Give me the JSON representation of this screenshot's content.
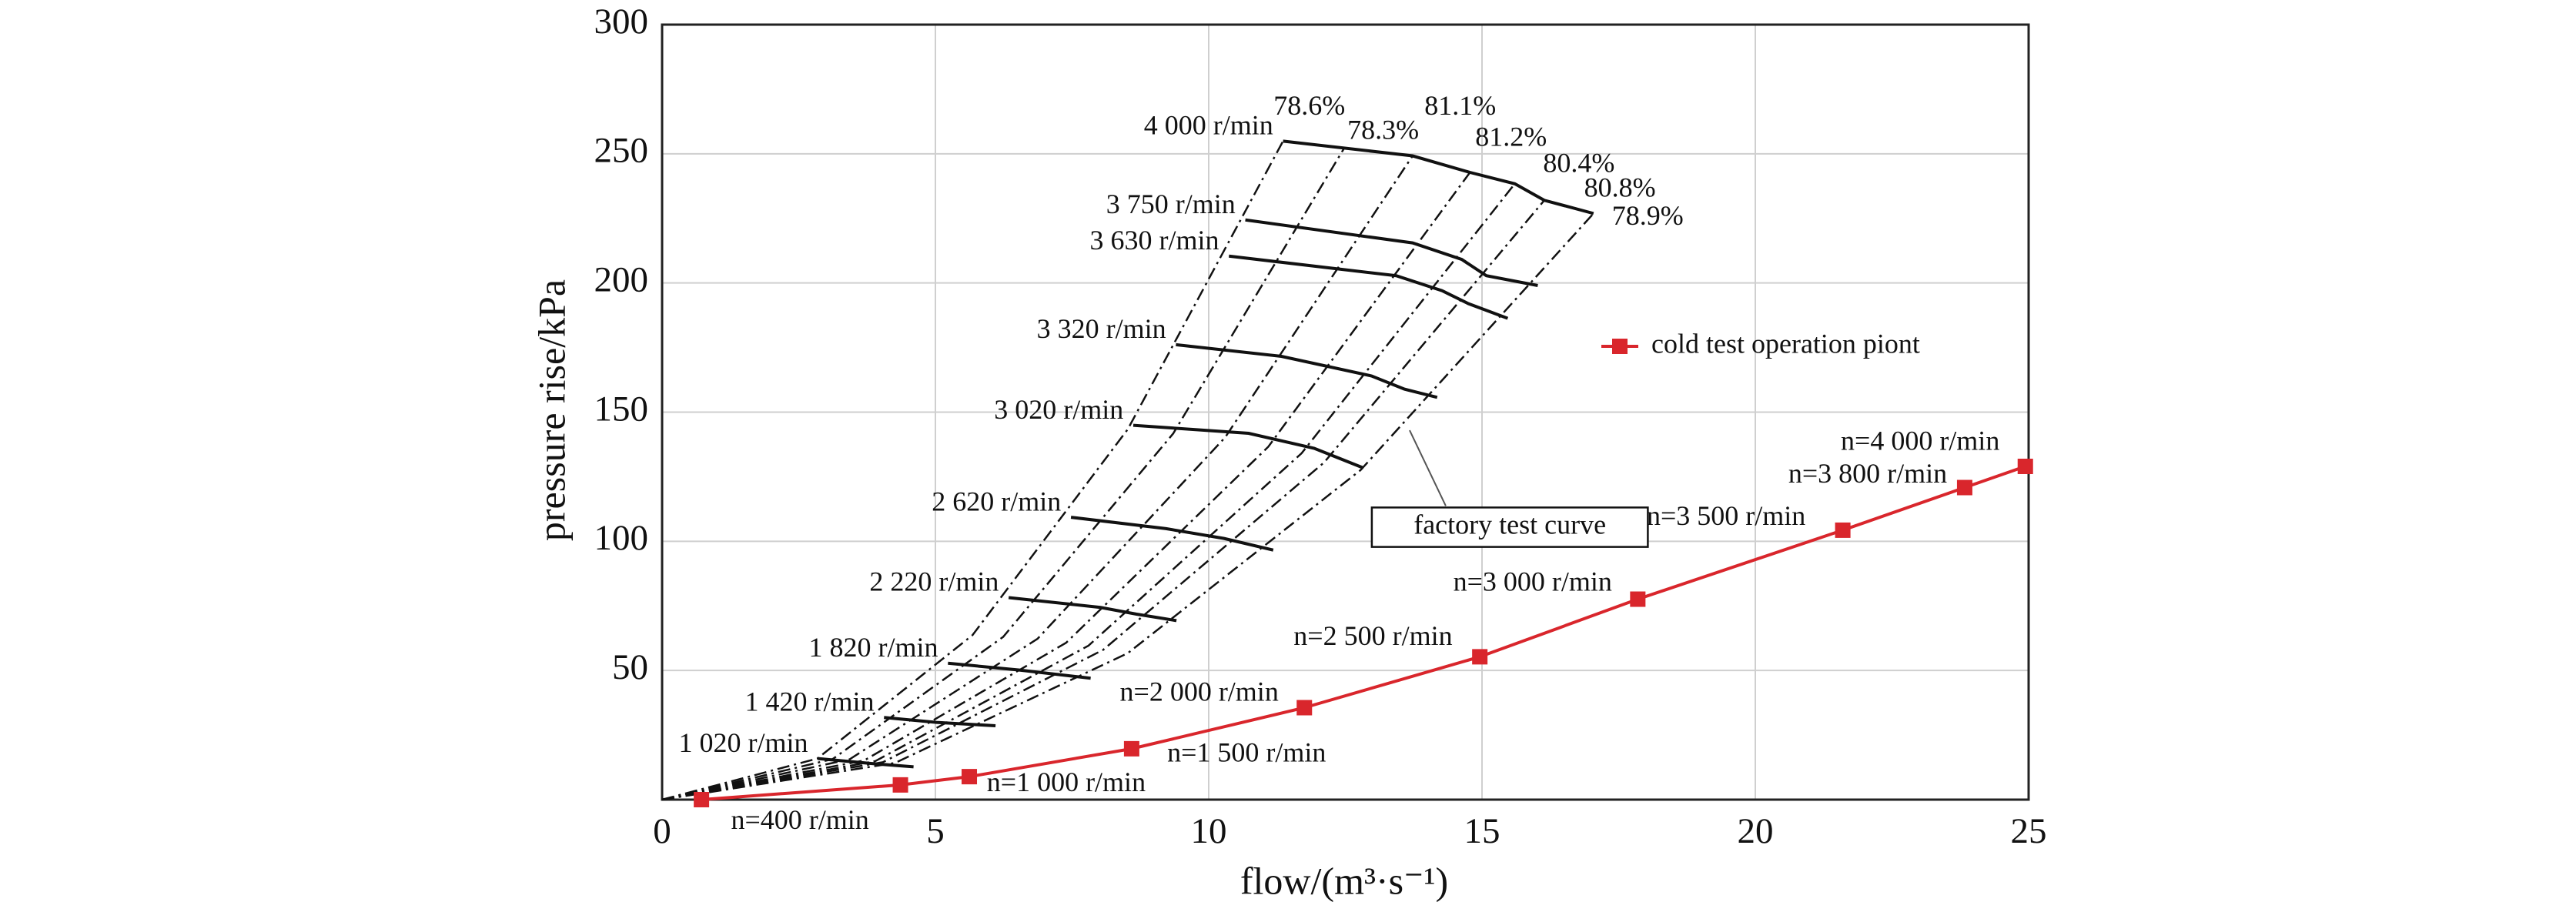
{
  "chart_data": {
    "type": "line",
    "xlabel": "flow/(m³·s⁻¹)",
    "ylabel": "pressure rise/kPa",
    "xlim": [
      0,
      25
    ],
    "ylim": [
      0,
      300
    ],
    "xticks": [
      0,
      5,
      10,
      15,
      20,
      25
    ],
    "yticks": [
      50,
      100,
      150,
      200,
      250,
      300
    ],
    "grid": true,
    "legend_position": "right",
    "series": [
      {
        "name": "cold test operation piont",
        "color": "#d9262c",
        "marker": "square",
        "x": [
          0.72,
          4.36,
          5.62,
          8.59,
          11.75,
          14.96,
          17.85,
          21.6,
          23.83,
          24.94
        ],
        "values": [
          0,
          5.7,
          8.9,
          19.7,
          35.6,
          55.3,
          77.6,
          104.3,
          120.8,
          129
        ],
        "point_labels": [
          "n=400 r/min",
          null,
          "n=1 000 r/min",
          "n=1 500 r/min",
          "n=2 000 r/min",
          "n=2 500 r/min",
          "n=3 000 r/min",
          "n=3 500 r/min",
          "n=3 800 r/min",
          "n=4 000 r/min"
        ]
      }
    ],
    "annotation": "factory test curve",
    "speed_lines": [
      {
        "label": "4 000 r/min",
        "x": [
          11.36,
          13.73,
          14.78,
          15.6,
          16.14,
          17.04
        ],
        "values": [
          254.9,
          249.2,
          242.8,
          238.4,
          232,
          226.9
        ]
      },
      {
        "label": "3 750 r/min",
        "x": [
          10.67,
          13.73,
          14.63,
          15.08,
          16.02
        ],
        "values": [
          224.4,
          215.5,
          209.1,
          202.8,
          199
        ]
      },
      {
        "label": "3 630 r/min",
        "x": [
          10.37,
          13.43,
          14.27,
          14.75,
          15.47
        ],
        "values": [
          210.4,
          202.8,
          197,
          192,
          186.3
        ]
      },
      {
        "label": "3 320 r/min",
        "x": [
          9.4,
          11.33,
          12.98,
          13.58,
          14.18
        ],
        "values": [
          176.1,
          171.6,
          164,
          158.9,
          155.7
        ]
      },
      {
        "label": "3 020 r/min",
        "x": [
          8.62,
          10.73,
          11.93,
          12.38,
          12.83
        ],
        "values": [
          144.9,
          141.8,
          136,
          132.2,
          128.4
        ]
      },
      {
        "label": "2 620 r/min",
        "x": [
          7.48,
          9.22,
          10.28,
          11.18
        ],
        "values": [
          109.3,
          104.9,
          101.1,
          96.6
        ]
      },
      {
        "label": "2 220 r/min",
        "x": [
          6.34,
          8.02,
          8.68,
          9.41
        ],
        "values": [
          78.2,
          74.4,
          71.8,
          69.3
        ]
      },
      {
        "label": "1 820 r/min",
        "x": [
          5.23,
          6.52,
          7.84
        ],
        "values": [
          52.8,
          50.2,
          47
        ]
      },
      {
        "label": "1 420 r/min",
        "x": [
          4.06,
          5.02,
          6.1
        ],
        "values": [
          31.8,
          29.9,
          28.6
        ]
      },
      {
        "label": "1 020 r/min",
        "x": [
          2.85,
          3.82,
          4.6
        ],
        "values": [
          15.9,
          14,
          12.7
        ]
      }
    ],
    "efficiency_lines": [
      {
        "label": "78.6%",
        "x": [
          0,
          2.84,
          5.68,
          8.52,
          11.36
        ],
        "values": [
          0,
          15.9,
          63.7,
          143.4,
          254.9
        ]
      },
      {
        "label": "78.3%",
        "x": [
          0,
          3.12,
          6.24,
          9.35,
          12.47
        ],
        "values": [
          0,
          15.7,
          63,
          141.7,
          251.9
        ]
      },
      {
        "label": "81.1%",
        "x": [
          0,
          3.43,
          6.87,
          10.3,
          13.73
        ],
        "values": [
          0,
          15.6,
          62.3,
          140.2,
          249.2
        ]
      },
      {
        "label": "81.2%",
        "x": [
          0,
          3.7,
          7.39,
          11.09,
          14.78
        ],
        "values": [
          0,
          15.2,
          60.7,
          136.6,
          242.8
        ]
      },
      {
        "label": "80.4%",
        "x": [
          0,
          3.9,
          7.8,
          11.7,
          15.6
        ],
        "values": [
          0,
          14.9,
          59.6,
          134.1,
          238.4
        ]
      },
      {
        "label": "80.8%",
        "x": [
          0,
          4.04,
          8.07,
          12.11,
          16.14
        ],
        "values": [
          0,
          14.5,
          58,
          130.5,
          232
        ]
      },
      {
        "label": "78.9%",
        "x": [
          0,
          4.26,
          8.52,
          12.78,
          17.04
        ],
        "values": [
          0,
          14.2,
          56.7,
          127.6,
          226.9
        ]
      }
    ]
  }
}
